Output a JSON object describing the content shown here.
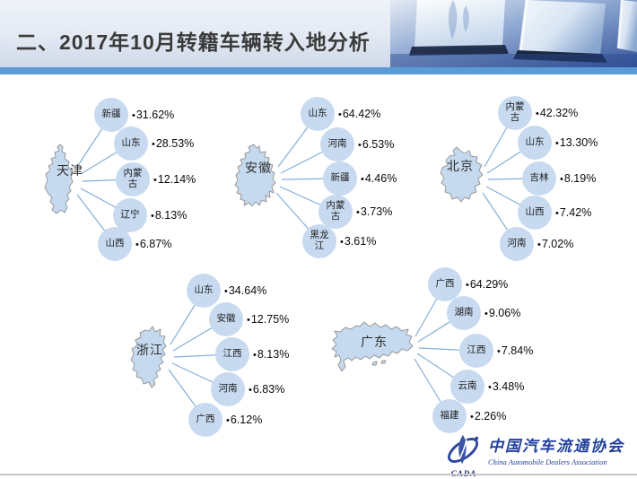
{
  "header": {
    "title": "二、2017年10月转籍车辆转入地分析"
  },
  "bullet": "•",
  "colors": {
    "accent_bar": "#5b9bd5",
    "bubble_fill": "#c7daf0",
    "connector_line": "#86aed8",
    "map_fill": "#c5d9ef",
    "map_border": "#999999",
    "title_color": "#3a3a3a",
    "logo_blue": "#22409c"
  },
  "chart_data": [
    {
      "type": "table",
      "title": "天津",
      "categories": [
        "新疆",
        "山东",
        "内蒙古",
        "辽宁",
        "山西"
      ],
      "values": [
        31.62,
        28.53,
        12.14,
        8.13,
        6.87
      ],
      "labels": [
        "31.62%",
        "28.53%",
        "12.14%",
        "8.13%",
        "6.87%"
      ],
      "unit": "%"
    },
    {
      "type": "table",
      "title": "安徽",
      "categories": [
        "山东",
        "河南",
        "新疆",
        "内蒙古",
        "黑龙江"
      ],
      "values": [
        64.42,
        6.53,
        4.46,
        3.73,
        3.61
      ],
      "labels": [
        "64.42%",
        "6.53%",
        "4.46%",
        "3.73%",
        "3.61%"
      ],
      "unit": "%"
    },
    {
      "type": "table",
      "title": "北京",
      "categories": [
        "内蒙古",
        "山东",
        "吉林",
        "山西",
        "河南"
      ],
      "values": [
        42.32,
        13.3,
        8.19,
        7.42,
        7.02
      ],
      "labels": [
        "42.32%",
        "13.30%",
        "8.19%",
        "7.42%",
        "7.02%"
      ],
      "unit": "%"
    },
    {
      "type": "table",
      "title": "浙江",
      "categories": [
        "山东",
        "安徽",
        "江西",
        "河南",
        "广西"
      ],
      "values": [
        34.64,
        12.75,
        8.13,
        6.83,
        6.12
      ],
      "labels": [
        "34.64%",
        "12.75%",
        "8.13%",
        "6.83%",
        "6.12%"
      ],
      "unit": "%"
    },
    {
      "type": "table",
      "title": "广东",
      "categories": [
        "广西",
        "湖南",
        "江西",
        "云南",
        "福建"
      ],
      "values": [
        64.29,
        9.06,
        7.84,
        3.48,
        2.26
      ],
      "labels": [
        "64.29%",
        "9.06%",
        "7.84%",
        "3.48%",
        "2.26%"
      ],
      "unit": "%"
    }
  ],
  "logo": {
    "cn": "中国汽车流通协会",
    "en": "China Automobile Dealers Association",
    "abbr": "CADA"
  }
}
